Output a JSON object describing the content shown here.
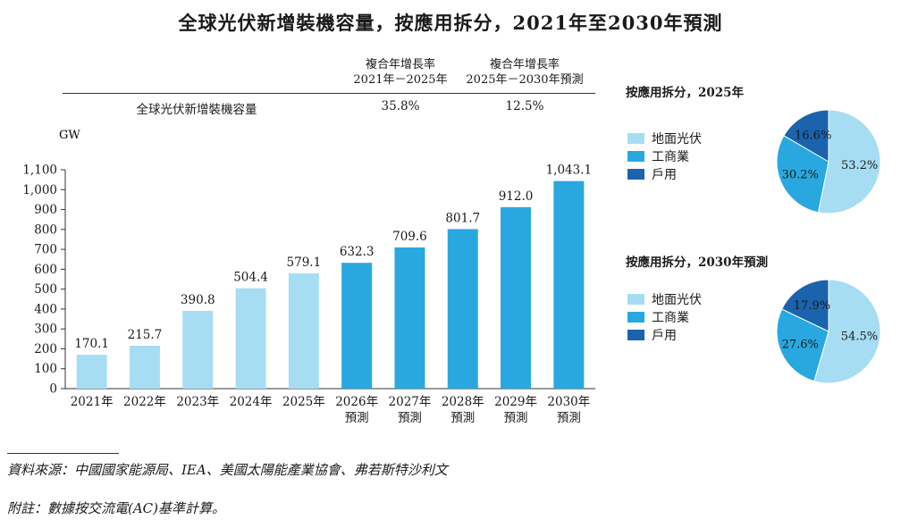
{
  "title": "全球光伏新增裝機容量，按應用拆分，2021年至2030年預測",
  "cagr_table": {
    "col1_line1": "複合年增長率",
    "col1_line2": "2021年－2025年",
    "col2_line1": "複合年增長率",
    "col2_line2": "2025年－2030年預測",
    "row_label": "全球光伏新增裝機容量",
    "row_val1": "35.8%",
    "row_val2": "12.5%"
  },
  "colors": {
    "historical": "#a6ddf3",
    "forecast": "#29a8e0",
    "ground": "#a6ddf3",
    "commercial": "#29a8e0",
    "residential": "#1b63ad"
  },
  "chart_data": [
    {
      "type": "bar",
      "ylabel": "GW",
      "ylim": [
        0,
        1100
      ],
      "yticks": [
        "0",
        "100",
        "200",
        "300",
        "400",
        "500",
        "600",
        "700",
        "800",
        "900",
        "1,000",
        "1,100"
      ],
      "categories": [
        {
          "line1": "2021年",
          "line2": ""
        },
        {
          "line1": "2022年",
          "line2": ""
        },
        {
          "line1": "2023年",
          "line2": ""
        },
        {
          "line1": "2024年",
          "line2": ""
        },
        {
          "line1": "2025年",
          "line2": ""
        },
        {
          "line1": "2026年",
          "line2": "預測"
        },
        {
          "line1": "2027年",
          "line2": "預測"
        },
        {
          "line1": "2028年",
          "line2": "預測"
        },
        {
          "line1": "2029年",
          "line2": "預測"
        },
        {
          "line1": "2030年",
          "line2": "預測"
        }
      ],
      "values": [
        170.1,
        215.7,
        390.8,
        504.4,
        579.1,
        632.3,
        709.6,
        801.7,
        912.0,
        1043.1
      ],
      "labels": [
        "170.1",
        "215.7",
        "390.8",
        "504.4",
        "579.1",
        "632.3",
        "709.6",
        "801.7",
        "912.0",
        "1,043.1"
      ],
      "forecast_from_index": 5,
      "grid": false
    },
    {
      "type": "pie",
      "title": "按應用拆分，2025年",
      "slices": [
        {
          "name": "地面光伏",
          "value": 53.2,
          "label": "53.2%",
          "color": "#a6ddf3"
        },
        {
          "name": "工商業",
          "value": 30.2,
          "label": "30.2%",
          "color": "#29a8e0"
        },
        {
          "name": "戶用",
          "value": 16.6,
          "label": "16.6%",
          "color": "#1b63ad"
        }
      ]
    },
    {
      "type": "pie",
      "title": "按應用拆分，2030年預測",
      "slices": [
        {
          "name": "地面光伏",
          "value": 54.5,
          "label": "54.5%",
          "color": "#a6ddf3"
        },
        {
          "name": "工商業",
          "value": 27.6,
          "label": "27.6%",
          "color": "#29a8e0"
        },
        {
          "name": "戶用",
          "value": 17.9,
          "label": "17.9%",
          "color": "#1b63ad"
        }
      ]
    }
  ],
  "legend": [
    {
      "name": "地面光伏",
      "color": "#a6ddf3"
    },
    {
      "name": "工商業",
      "color": "#29a8e0"
    },
    {
      "name": "戶用",
      "color": "#1b63ad"
    }
  ],
  "notes": {
    "source": "資料來源：中國國家能源局、IEA、美國太陽能產業協會、弗若斯特沙利文",
    "remark": "附註：數據按交流電(AC)基準計算。"
  }
}
